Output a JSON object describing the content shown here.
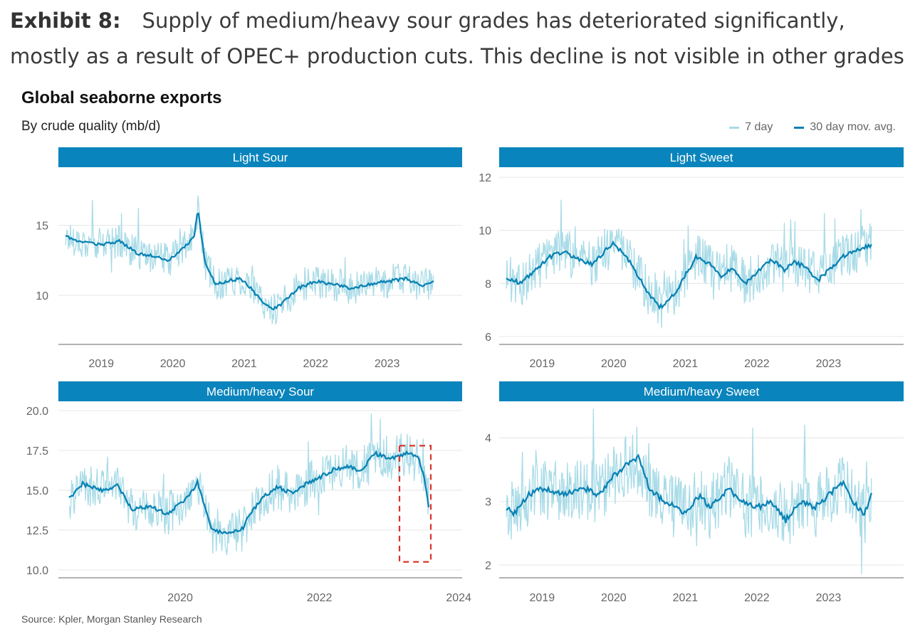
{
  "exhibit": {
    "label": "Exhibit 8:",
    "caption": "Supply of medium/heavy sour grades has deteriorated significantly, mostly as a result of OPEC+ production cuts. This decline is not visible in other grades"
  },
  "chart_title": "Global seaborne exports",
  "chart_subtitle": "By crude quality (mb/d)",
  "legend": {
    "items": [
      {
        "label": "7 day",
        "color": "#a8dbe7"
      },
      {
        "label": "30 day mov. avg.",
        "color": "#0a82b4"
      }
    ]
  },
  "source": "Source: Kpler, Morgan Stanley Research",
  "colors": {
    "strip": "#0a84bc",
    "line7": "#a8dbe7",
    "line30": "#0a82b4",
    "highlight": "#d9342b",
    "grid": "#e6e6e6",
    "axis": "#999999"
  },
  "chart_data": [
    {
      "type": "line",
      "panel": "Light Sour",
      "x_range": [
        2018.4,
        2024.05
      ],
      "ylim": [
        6.5,
        19.0
      ],
      "yticks": [
        10,
        15
      ],
      "ytick_labels": [
        "10",
        "15"
      ],
      "xticks": [
        2019,
        2020,
        2021,
        2022,
        2023
      ],
      "xtick_labels": [
        "2019",
        "2020",
        "2021",
        "2022",
        "2023"
      ],
      "noise": 1.2,
      "series": [
        {
          "name": "30 day mov. avg.",
          "x": [
            2018.5,
            2018.75,
            2019.0,
            2019.25,
            2019.5,
            2019.75,
            2019.95,
            2020.1,
            2020.2,
            2020.3,
            2020.35,
            2020.45,
            2020.6,
            2020.75,
            2020.95,
            2021.1,
            2021.25,
            2021.4,
            2021.55,
            2021.75,
            2022.0,
            2022.25,
            2022.5,
            2022.75,
            2023.0,
            2023.25,
            2023.5,
            2023.65
          ],
          "values": [
            14.2,
            13.8,
            13.6,
            13.9,
            13.0,
            12.8,
            12.5,
            13.2,
            13.6,
            14.2,
            16.2,
            12.4,
            10.8,
            11.0,
            11.2,
            10.5,
            9.5,
            9.0,
            9.5,
            10.5,
            11.0,
            10.8,
            10.5,
            10.8,
            11.0,
            11.2,
            10.7,
            11.0
          ]
        }
      ]
    },
    {
      "type": "line",
      "panel": "Light Sweet",
      "x_range": [
        2018.4,
        2024.05
      ],
      "ylim": [
        5.7,
        12.3
      ],
      "yticks": [
        6,
        8,
        10,
        12
      ],
      "ytick_labels": [
        "6",
        "8",
        "10",
        "12"
      ],
      "xticks": [
        2019,
        2020,
        2021,
        2022,
        2023
      ],
      "xtick_labels": [
        "2019",
        "2020",
        "2021",
        "2022",
        "2023"
      ],
      "noise": 0.9,
      "series": [
        {
          "name": "30 day mov. avg.",
          "x": [
            2018.5,
            2018.7,
            2018.9,
            2019.1,
            2019.3,
            2019.5,
            2019.7,
            2019.9,
            2020.0,
            2020.2,
            2020.4,
            2020.5,
            2020.65,
            2020.85,
            2021.0,
            2021.15,
            2021.35,
            2021.5,
            2021.65,
            2021.85,
            2022.0,
            2022.2,
            2022.4,
            2022.5,
            2022.7,
            2022.85,
            2023.0,
            2023.2,
            2023.4,
            2023.6
          ],
          "values": [
            8.2,
            8.0,
            8.5,
            9.0,
            9.2,
            8.9,
            8.7,
            9.3,
            9.5,
            8.9,
            8.0,
            7.6,
            7.1,
            7.6,
            8.3,
            9.0,
            8.7,
            8.2,
            8.6,
            8.0,
            8.4,
            8.9,
            8.5,
            8.8,
            8.6,
            8.1,
            8.5,
            9.0,
            9.3,
            9.4
          ]
        }
      ]
    },
    {
      "type": "line",
      "panel": "Medium/heavy Sour",
      "x_range": [
        2018.25,
        2024.05
      ],
      "ylim": [
        9.5,
        20.5
      ],
      "yticks": [
        10.0,
        12.5,
        15.0,
        17.5,
        20.0
      ],
      "ytick_labels": [
        "10.0",
        "12.5",
        "15.0",
        "17.5",
        "20.0"
      ],
      "xticks": [
        2020,
        2022,
        2024
      ],
      "xtick_labels": [
        "2020",
        "2022",
        "2024"
      ],
      "noise": 1.4,
      "highlight": {
        "x": [
          2023.15,
          2023.6
        ],
        "y": [
          10.5,
          17.8
        ]
      },
      "series": [
        {
          "name": "30 day mov. avg.",
          "x": [
            2018.4,
            2018.6,
            2018.85,
            2019.1,
            2019.3,
            2019.6,
            2019.8,
            2020.1,
            2020.25,
            2020.35,
            2020.45,
            2020.7,
            2020.9,
            2021.0,
            2021.2,
            2021.4,
            2021.6,
            2021.85,
            2022.0,
            2022.2,
            2022.4,
            2022.6,
            2022.8,
            2023.0,
            2023.2,
            2023.3,
            2023.42,
            2023.5,
            2023.57
          ],
          "values": [
            14.5,
            15.4,
            15.0,
            15.3,
            13.8,
            14.0,
            13.5,
            14.5,
            15.5,
            14.0,
            12.5,
            12.3,
            12.6,
            13.5,
            14.6,
            15.2,
            14.8,
            15.5,
            15.8,
            16.3,
            16.5,
            16.2,
            17.3,
            17.0,
            17.2,
            17.4,
            17.0,
            16.0,
            14.0
          ]
        }
      ]
    },
    {
      "type": "line",
      "panel": "Medium/heavy Sweet",
      "x_range": [
        2018.4,
        2024.05
      ],
      "ylim": [
        1.8,
        4.55
      ],
      "yticks": [
        2,
        3,
        4
      ],
      "ytick_labels": [
        "2",
        "3",
        "4"
      ],
      "xticks": [
        2019,
        2020,
        2021,
        2022,
        2023
      ],
      "xtick_labels": [
        "2019",
        "2020",
        "2021",
        "2022",
        "2023"
      ],
      "noise": 0.5,
      "series": [
        {
          "name": "30 day mov. avg.",
          "x": [
            2018.5,
            2018.6,
            2018.8,
            2019.0,
            2019.3,
            2019.6,
            2019.8,
            2020.0,
            2020.2,
            2020.35,
            2020.5,
            2020.7,
            2020.9,
            2021.0,
            2021.2,
            2021.35,
            2021.6,
            2021.8,
            2022.0,
            2022.2,
            2022.4,
            2022.6,
            2022.8,
            2023.0,
            2023.2,
            2023.35,
            2023.5,
            2023.6
          ],
          "values": [
            2.9,
            2.8,
            3.1,
            3.2,
            3.1,
            3.2,
            3.1,
            3.4,
            3.6,
            3.7,
            3.2,
            3.0,
            2.9,
            2.8,
            3.1,
            2.9,
            3.2,
            3.0,
            2.9,
            3.0,
            2.7,
            3.0,
            2.9,
            3.1,
            3.3,
            3.0,
            2.8,
            3.1
          ]
        }
      ]
    }
  ]
}
